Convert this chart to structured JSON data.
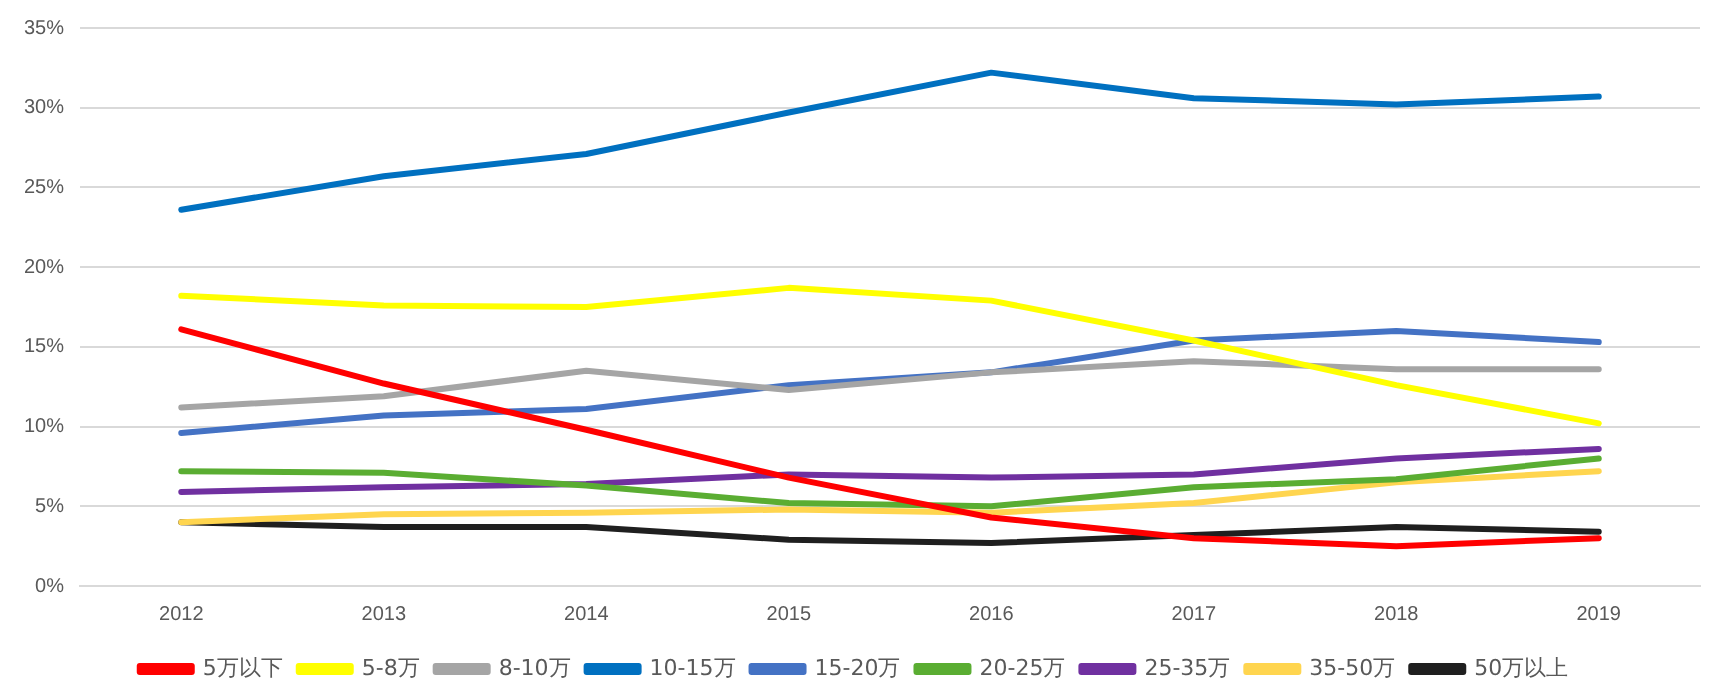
{
  "chart_data": {
    "type": "line",
    "categories": [
      "2012",
      "2013",
      "2014",
      "2015",
      "2016",
      "2017",
      "2018",
      "2019"
    ],
    "series": [
      {
        "name": "5万以下",
        "color": "#ff0000",
        "values": [
          16.1,
          12.7,
          9.8,
          6.8,
          4.3,
          3.0,
          2.5,
          3.0
        ]
      },
      {
        "name": "5-8万",
        "color": "#ffff00",
        "values": [
          18.2,
          17.6,
          17.5,
          18.7,
          17.9,
          15.4,
          12.6,
          10.2
        ]
      },
      {
        "name": "8-10万",
        "color": "#a5a5a5",
        "values": [
          11.2,
          11.9,
          13.5,
          12.3,
          13.4,
          14.1,
          13.6,
          13.6
        ]
      },
      {
        "name": "10-15万",
        "color": "#0070c0",
        "values": [
          23.6,
          25.7,
          27.1,
          29.7,
          32.2,
          30.6,
          30.2,
          30.7
        ]
      },
      {
        "name": "15-20万",
        "color": "#4472c4",
        "values": [
          9.6,
          10.7,
          11.1,
          12.6,
          13.4,
          15.4,
          16.0,
          15.3
        ]
      },
      {
        "name": "20-25万",
        "color": "#5aad32",
        "values": [
          7.2,
          7.1,
          6.3,
          5.2,
          5.0,
          6.2,
          6.7,
          8.0
        ]
      },
      {
        "name": "25-35万",
        "color": "#7030a0",
        "values": [
          5.9,
          6.2,
          6.4,
          7.0,
          6.8,
          7.0,
          8.0,
          8.6
        ]
      },
      {
        "name": "35-50万",
        "color": "#ffd54f",
        "values": [
          4.0,
          4.5,
          4.6,
          4.8,
          4.6,
          5.2,
          6.5,
          7.2
        ]
      },
      {
        "name": "50万以上",
        "color": "#1f1f1f",
        "values": [
          4.0,
          3.7,
          3.7,
          2.9,
          2.7,
          3.2,
          3.7,
          3.4
        ]
      }
    ],
    "ylim": [
      0,
      35
    ],
    "yticks": [
      {
        "value": 0,
        "label": "0%"
      },
      {
        "value": 5,
        "label": "5%"
      },
      {
        "value": 10,
        "label": "10%"
      },
      {
        "value": 15,
        "label": "15%"
      },
      {
        "value": 20,
        "label": "20%"
      },
      {
        "value": 25,
        "label": "25%"
      },
      {
        "value": 30,
        "label": "30%"
      },
      {
        "value": 35,
        "label": "35%"
      }
    ],
    "grid": "y",
    "legend": "bottom",
    "marker": "none",
    "line_style": "solid"
  }
}
